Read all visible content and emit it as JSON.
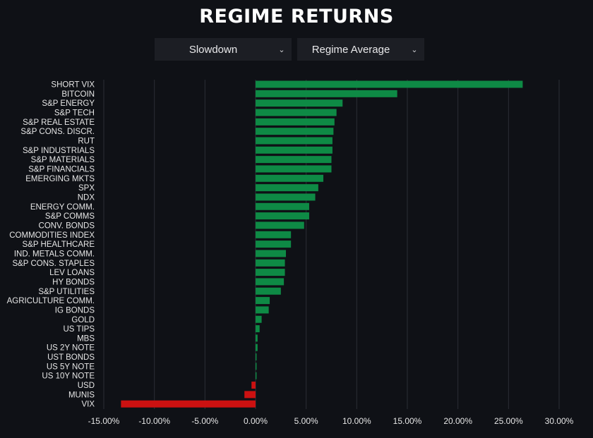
{
  "title": "REGIME RETURNS",
  "controls": {
    "regime": "Slowdown",
    "measure": "Regime Average"
  },
  "colors": {
    "positive": "#0e8a45",
    "negative": "#cc1111",
    "grid": "#2b2e35",
    "label": "#e6e6e6",
    "background": "#0f1116"
  },
  "chart_data": {
    "type": "bar",
    "orientation": "horizontal",
    "grid": true,
    "xlim": [
      -15,
      30
    ],
    "x_ticks": [
      "-15.00%",
      "-10.00%",
      "-5.00%",
      "0.00%",
      "5.00%",
      "10.00%",
      "15.00%",
      "20.00%",
      "25.00%",
      "30.00%"
    ],
    "x_tick_values": [
      -15,
      -10,
      -5,
      0,
      5,
      10,
      15,
      20,
      25,
      30
    ],
    "unit": "%",
    "categories": [
      "SHORT VIX",
      "BITCOIN",
      "S&P ENERGY",
      "S&P TECH",
      "S&P REAL ESTATE",
      "S&P CONS. DISCR.",
      "RUT",
      "S&P INDUSTRIALS",
      "S&P MATERIALS",
      "S&P FINANCIALS",
      "EMERGING MKTS",
      "SPX",
      "NDX",
      "ENERGY COMM.",
      "S&P COMMS",
      "CONV. BONDS",
      "COMMODITIES INDEX",
      "S&P HEALTHCARE",
      "IND. METALS COMM.",
      "S&P CONS. STAPLES",
      "LEV LOANS",
      "HY BONDS",
      "S&P UTILITIES",
      "AGRICULTURE COMM.",
      "IG BONDS",
      "GOLD",
      "US TIPS",
      "MBS",
      "US 2Y NOTE",
      "UST BONDS",
      "US 5Y NOTE",
      "US 10Y NOTE",
      "USD",
      "MUNIS",
      "VIX"
    ],
    "values": [
      26.4,
      14.0,
      8.6,
      8.0,
      7.8,
      7.7,
      7.6,
      7.6,
      7.5,
      7.5,
      6.7,
      6.2,
      5.9,
      5.3,
      5.3,
      4.8,
      3.5,
      3.5,
      3.0,
      2.9,
      2.9,
      2.8,
      2.5,
      1.4,
      1.3,
      0.6,
      0.4,
      0.2,
      0.2,
      0.1,
      0.1,
      0.1,
      -0.4,
      -1.1,
      -13.3
    ]
  }
}
